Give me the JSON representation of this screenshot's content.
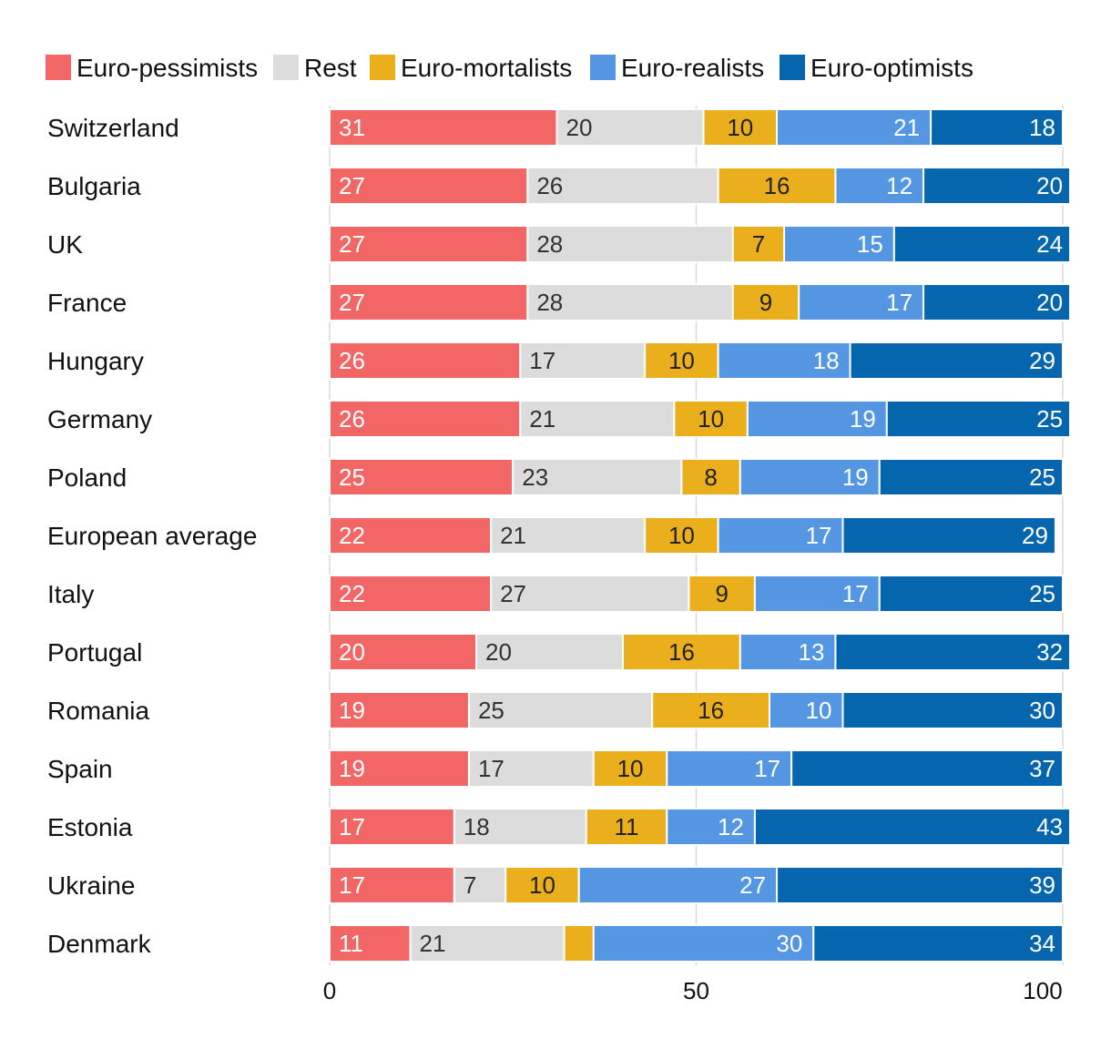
{
  "chart_data": {
    "type": "bar",
    "orientation": "horizontal",
    "stacked": true,
    "title": "",
    "xlabel": "",
    "ylabel": "",
    "xlim": [
      0,
      100
    ],
    "xticks": [
      0,
      50,
      100
    ],
    "grid": true,
    "legend_position": "top",
    "categories": [
      "Switzerland",
      "Bulgaria",
      "UK",
      "France",
      "Hungary",
      "Germany",
      "Poland",
      "European average",
      "Italy",
      "Portugal",
      "Romania",
      "Spain",
      "Estonia",
      "Ukraine",
      "Denmark"
    ],
    "series": [
      {
        "name": "Euro-pessimists",
        "color": "#f26666",
        "label_color": "#ffffff",
        "values": [
          31,
          27,
          27,
          27,
          26,
          26,
          25,
          22,
          22,
          20,
          19,
          19,
          17,
          17,
          11
        ]
      },
      {
        "name": "Rest",
        "color": "#dcdcdc",
        "label_color": "#333333",
        "values": [
          20,
          26,
          28,
          28,
          17,
          21,
          23,
          21,
          27,
          20,
          25,
          17,
          18,
          7,
          21
        ]
      },
      {
        "name": "Euro-mortalists",
        "color": "#ebaf1d",
        "label_color": "#222222",
        "values": [
          10,
          16,
          7,
          9,
          10,
          10,
          8,
          10,
          9,
          16,
          16,
          10,
          11,
          10,
          4
        ]
      },
      {
        "name": "Euro-realists",
        "color": "#5496e2",
        "label_color": "#ffffff",
        "values": [
          21,
          12,
          15,
          17,
          18,
          19,
          19,
          17,
          17,
          13,
          10,
          17,
          12,
          27,
          30
        ]
      },
      {
        "name": "Euro-optimists",
        "color": "#0565ad",
        "label_color": "#ffffff",
        "values": [
          18,
          20,
          24,
          20,
          29,
          25,
          25,
          29,
          25,
          32,
          30,
          37,
          43,
          39,
          34
        ]
      }
    ],
    "hidden_labels": [
      {
        "series": 2,
        "category": 14
      }
    ]
  }
}
